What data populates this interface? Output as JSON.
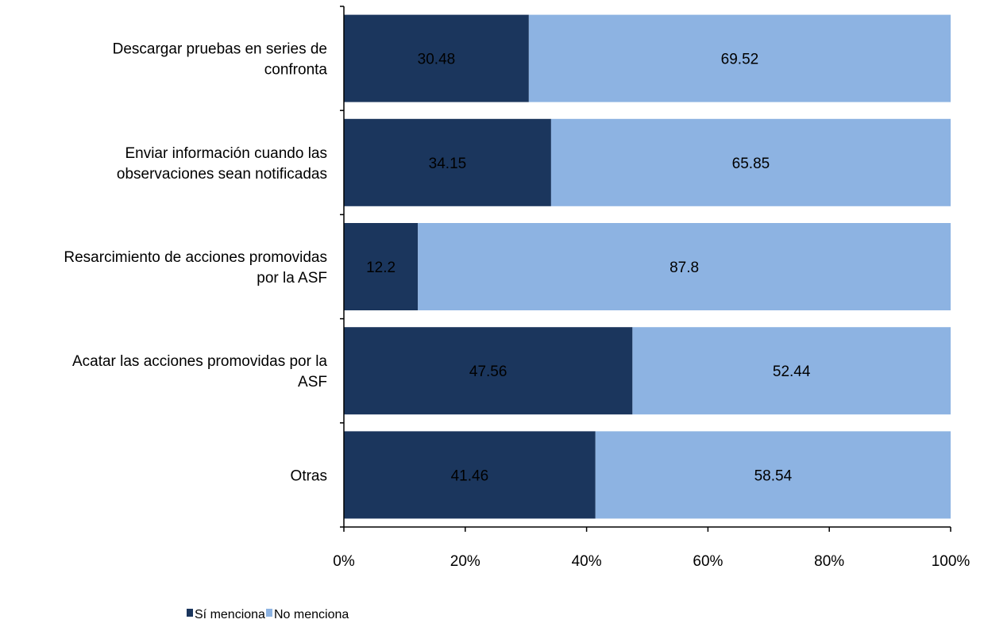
{
  "chart_data": {
    "type": "bar",
    "orientation": "horizontal",
    "stacked": "percent",
    "categories": [
      [
        "Descargar pruebas en series de",
        "confronta"
      ],
      [
        "Enviar información cuando las",
        "observaciones sean notificadas"
      ],
      [
        "Resarcimiento de acciones promovidas",
        "por la ASF"
      ],
      [
        "Acatar las acciones promovidas por la",
        "ASF"
      ],
      [
        "Otras"
      ]
    ],
    "series": [
      {
        "name": "Sí menciona",
        "color": "#1b365d",
        "values": [
          30.48,
          34.15,
          12.2,
          47.56,
          41.46
        ],
        "labels": [
          "30.48",
          "34.15",
          "12.2",
          "47.56",
          "41.46"
        ]
      },
      {
        "name": "No menciona",
        "color": "#8db3e2",
        "values": [
          69.52,
          65.85,
          87.8,
          52.44,
          58.54
        ],
        "labels": [
          "69.52",
          "65.85",
          "87.8",
          "52.44",
          "58.54"
        ]
      }
    ],
    "xlim": [
      0,
      100
    ],
    "xticks": [
      "0%",
      "20%",
      "40%",
      "60%",
      "80%",
      "100%"
    ],
    "xlabel": "",
    "ylabel": "",
    "grid": false,
    "legend_position": "bottom"
  }
}
